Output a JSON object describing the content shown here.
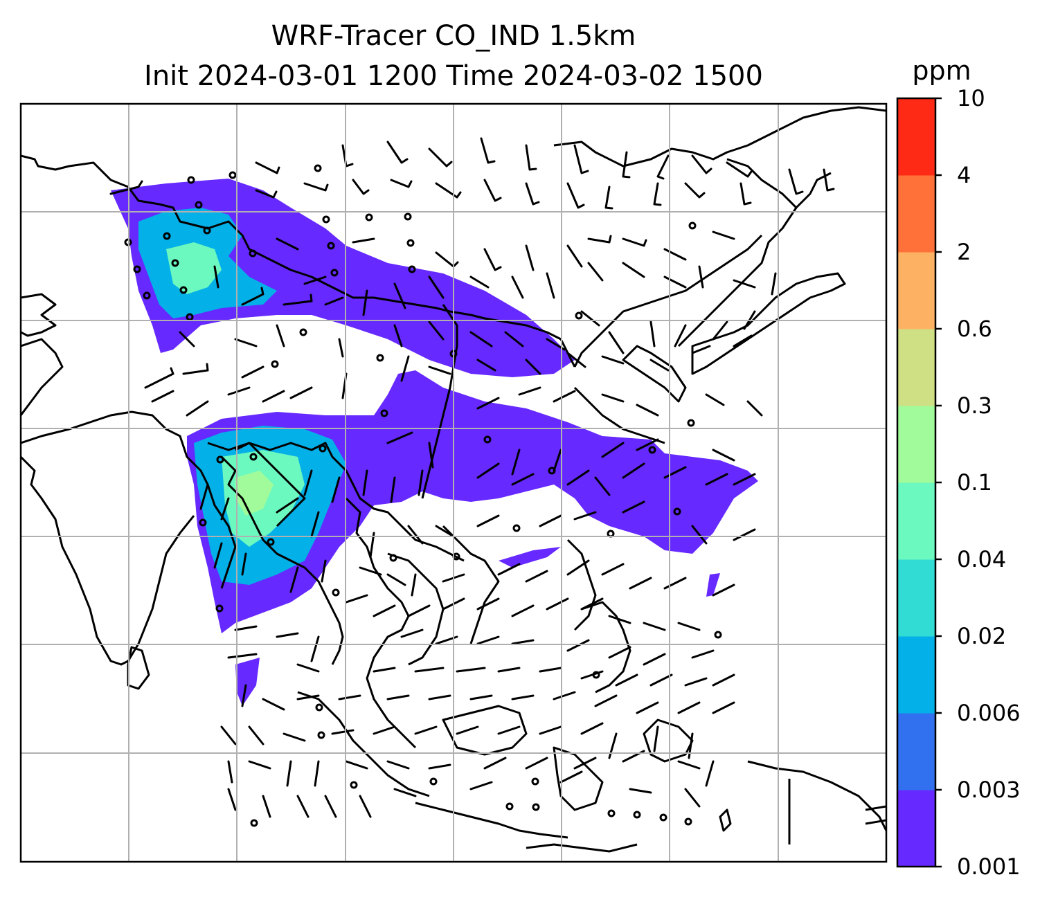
{
  "title": {
    "line1": "WRF-Tracer CO_IND 1.5km",
    "line2": "Init 2024-03-01 1200 Time 2024-03-02 1500"
  },
  "colorbar": {
    "units": "ppm",
    "levels": [
      "0.001",
      "0.003",
      "0.006",
      "0.02",
      "0.04",
      "0.1",
      "0.3",
      "0.6",
      "2",
      "4",
      "10"
    ],
    "colors": [
      "#6629ff",
      "#3171f0",
      "#04b0e8",
      "#30dcd4",
      "#6cf9bf",
      "#a1fb9a",
      "#cfdf84",
      "#fdb163",
      "#ff7138",
      "#ff2a16"
    ]
  },
  "map": {
    "gridlines": true,
    "features": [
      "coastlines",
      "country-borders",
      "wind-barbs",
      "calm-wind-circles"
    ],
    "tracer_color_concentration": "#6629ff",
    "tracer_color_mid": "#04b0e8",
    "tracer_color_high": "#6cf9bf",
    "tracer_color_peak": "#a1fb9a"
  }
}
